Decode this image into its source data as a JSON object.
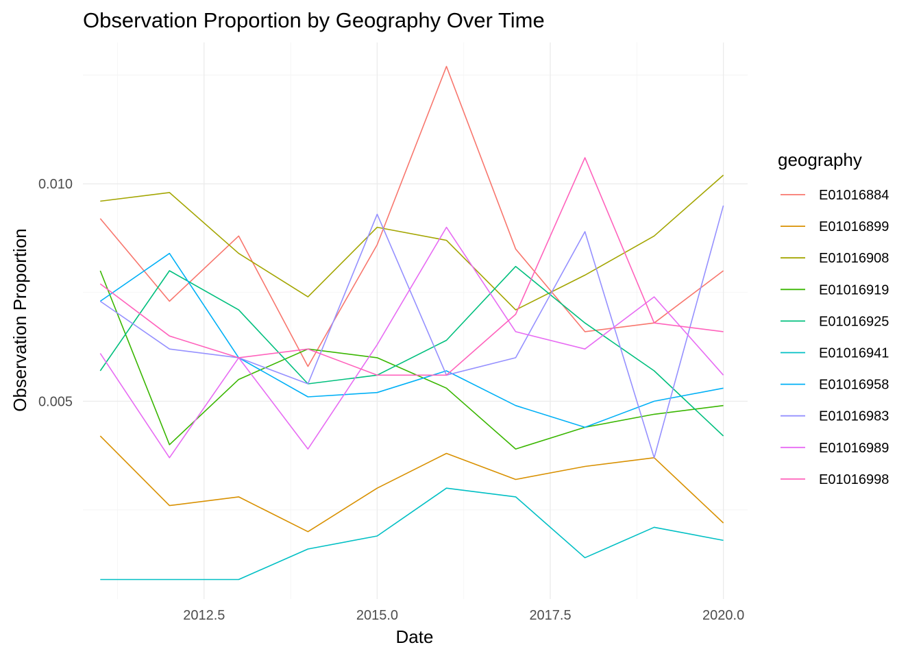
{
  "chart_data": {
    "type": "line",
    "title": "Observation Proportion by Geography Over Time",
    "xlabel": "Date",
    "ylabel": "Observation Proportion",
    "xlim": [
      2010.75,
      2020.35
    ],
    "ylim": [
      0.00045,
      0.01325
    ],
    "x_major_ticks": [
      2012.5,
      2015.0,
      2017.5,
      2020.0
    ],
    "x_tick_labels": [
      "2012.5",
      "2015.0",
      "2017.5",
      "2020.0"
    ],
    "x_minor_ticks": [
      2011.25,
      2013.75,
      2016.25,
      2018.75
    ],
    "y_major_ticks": [
      0.005,
      0.01
    ],
    "y_tick_labels": [
      "0.005",
      "0.010"
    ],
    "y_minor_ticks": [
      0.0025,
      0.0075,
      0.0125
    ],
    "grid": true,
    "legend_title": "geography",
    "legend_position": "right",
    "x": [
      2011,
      2012,
      2013,
      2014,
      2015,
      2016,
      2017,
      2018,
      2019,
      2020
    ],
    "series": [
      {
        "name": "E01016884",
        "color": "#F8766D",
        "values": [
          0.0092,
          0.0073,
          0.0088,
          0.0058,
          0.0086,
          0.0127,
          0.0085,
          0.0066,
          0.0068,
          0.008
        ]
      },
      {
        "name": "E01016899",
        "color": "#D89000",
        "values": [
          0.0042,
          0.0026,
          0.0028,
          0.002,
          0.003,
          0.0038,
          0.0032,
          0.0035,
          0.0037,
          0.0022
        ]
      },
      {
        "name": "E01016908",
        "color": "#A3A500",
        "values": [
          0.0096,
          0.0098,
          0.0084,
          0.0074,
          0.009,
          0.0087,
          0.0071,
          0.0079,
          0.0088,
          0.0102
        ]
      },
      {
        "name": "E01016919",
        "color": "#39B600",
        "values": [
          0.008,
          0.004,
          0.0055,
          0.0062,
          0.006,
          0.0053,
          0.0039,
          0.0044,
          0.0047,
          0.0049
        ]
      },
      {
        "name": "E01016925",
        "color": "#00BF7D",
        "values": [
          0.0057,
          0.008,
          0.0071,
          0.0054,
          0.0056,
          0.0064,
          0.0081,
          0.0068,
          0.0057,
          0.0042
        ]
      },
      {
        "name": "E01016941",
        "color": "#00BFC4",
        "values": [
          0.0009,
          0.0009,
          0.0009,
          0.0016,
          0.0019,
          0.003,
          0.0028,
          0.0014,
          0.0021,
          0.0018
        ]
      },
      {
        "name": "E01016958",
        "color": "#00B0F6",
        "values": [
          0.0073,
          0.0084,
          0.006,
          0.0051,
          0.0052,
          0.0057,
          0.0049,
          0.0044,
          0.005,
          0.0053
        ]
      },
      {
        "name": "E01016983",
        "color": "#9590FF",
        "values": [
          0.0073,
          0.0062,
          0.006,
          0.0054,
          0.0093,
          0.0056,
          0.006,
          0.0089,
          0.0037,
          0.0095
        ]
      },
      {
        "name": "E01016989",
        "color": "#E76BF3",
        "values": [
          0.0061,
          0.0037,
          0.006,
          0.0039,
          0.0063,
          0.009,
          0.0066,
          0.0062,
          0.0074,
          0.0056
        ]
      },
      {
        "name": "E01016998",
        "color": "#FF62BC",
        "values": [
          0.0077,
          0.0065,
          0.006,
          0.0062,
          0.0056,
          0.0056,
          0.007,
          0.0106,
          0.0068,
          0.0066
        ]
      }
    ]
  }
}
